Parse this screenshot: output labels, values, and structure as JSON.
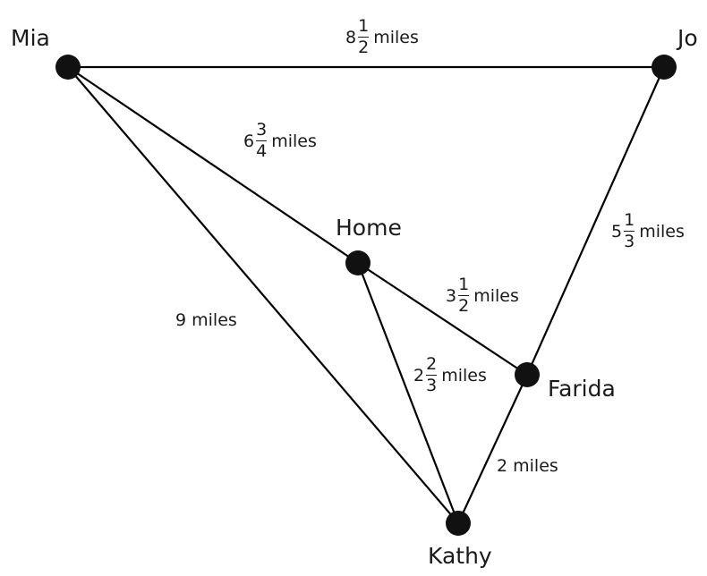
{
  "nodes": {
    "mia": "Mia",
    "jo": "Jo",
    "home": "Home",
    "farida": "Farida",
    "kathy": "Kathy"
  },
  "edges": {
    "mia_jo": {
      "whole": "8",
      "num": "1",
      "den": "2",
      "unit": "miles"
    },
    "mia_home": {
      "whole": "6",
      "num": "3",
      "den": "4",
      "unit": "miles"
    },
    "jo_farida": {
      "whole": "5",
      "num": "1",
      "den": "3",
      "unit": "miles"
    },
    "home_farida": {
      "whole": "3",
      "num": "1",
      "den": "2",
      "unit": "miles"
    },
    "mia_kathy": {
      "text": "9 miles"
    },
    "home_kathy": {
      "whole": "2",
      "num": "2",
      "den": "3",
      "unit": "miles"
    },
    "farida_kathy": {
      "text": "2 miles"
    }
  }
}
